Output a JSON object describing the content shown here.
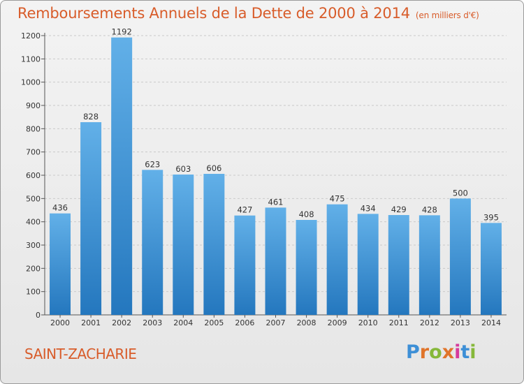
{
  "header": {
    "title": "Remboursements Annuels de la Dette de 2000 à 2014",
    "subtitle": "(en milliers d'€)"
  },
  "footer": {
    "commune": "SAINT-ZACHARIE",
    "logo_letters": [
      "P",
      "r",
      "o",
      "x",
      "i",
      "t",
      "i"
    ],
    "logo_colors": [
      "#3d8fd6",
      "#e0742a",
      "#86b83a",
      "#e0742a",
      "#d63a9c",
      "#3d8fd6",
      "#86b83a"
    ]
  },
  "colors": {
    "accent": "#d85c2a",
    "bar_top": "#62b0e8",
    "bar_bottom": "#2477be"
  },
  "chart_data": {
    "type": "bar",
    "title": "Remboursements Annuels de la Dette de 2000 à 2014",
    "subtitle": "(en milliers d'€)",
    "categories": [
      "2000",
      "2001",
      "2002",
      "2003",
      "2004",
      "2005",
      "2006",
      "2007",
      "2008",
      "2009",
      "2010",
      "2011",
      "2012",
      "2013",
      "2014"
    ],
    "values": [
      436,
      828,
      1192,
      623,
      603,
      606,
      427,
      461,
      408,
      475,
      434,
      429,
      428,
      500,
      395
    ],
    "yticks": [
      0,
      100,
      200,
      300,
      400,
      500,
      600,
      700,
      800,
      900,
      1000,
      1100,
      1200
    ],
    "ylim": [
      0,
      1200
    ],
    "grid": true,
    "xlabel": "",
    "ylabel": ""
  }
}
